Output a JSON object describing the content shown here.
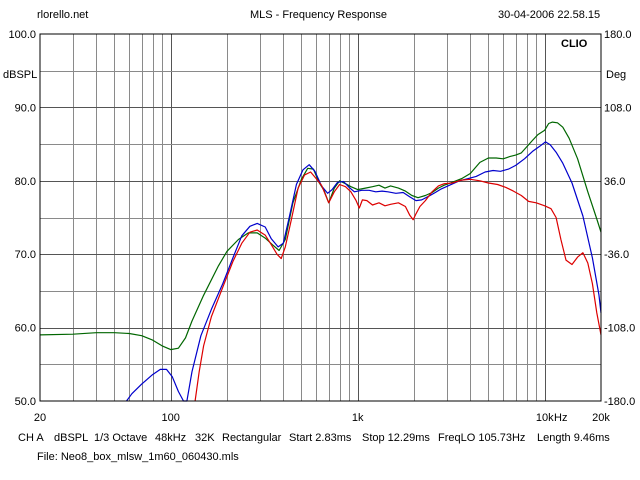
{
  "header": {
    "left": "rlorello.net",
    "center": "MLS - Frequency Response",
    "right": "30-04-2006 22.58.15"
  },
  "brand": "CLIO",
  "footer": {
    "line1": [
      "CH A",
      "dBSPL",
      "1/3 Octave",
      "48kHz",
      "32K",
      "Rectangular",
      "Start 2.83ms",
      "Stop 12.29ms",
      "FreqLO 105.73Hz",
      "Length 9.46ms"
    ],
    "line2": "File: Neo8_box_mlsw_1m60_060430.mls"
  },
  "chart_data": {
    "type": "line",
    "x_scale": "log",
    "xlim": [
      20,
      20000
    ],
    "ylim": [
      50,
      100
    ],
    "y2lim": [
      -180,
      180
    ],
    "grid": true,
    "legend": "none",
    "ylabel": "dBSPL",
    "y2label": "Deg",
    "xunit": "Hz",
    "x_ticks": [
      {
        "value": 20,
        "label": "20"
      },
      {
        "value": 100,
        "label": "100"
      },
      {
        "value": 1000,
        "label": "1k"
      },
      {
        "value": 10000,
        "label": "10k"
      },
      {
        "value": 20000,
        "label": "20k"
      }
    ],
    "y_ticks": [
      "50.0",
      "60.0",
      "70.0",
      "80.0",
      "90.0",
      "100.0"
    ],
    "y2_ticks": [
      "-180.0",
      "-108.0",
      "-36.0",
      "36.0",
      "108.0",
      "180.0"
    ],
    "series": [
      {
        "color": "#006600",
        "points": [
          [
            20,
            59
          ],
          [
            30,
            59.1
          ],
          [
            40,
            59.3
          ],
          [
            50,
            59.3
          ],
          [
            60,
            59.2
          ],
          [
            70,
            58.9
          ],
          [
            80,
            58.3
          ],
          [
            90,
            57.5
          ],
          [
            100,
            57
          ],
          [
            110,
            57.2
          ],
          [
            120,
            58.6
          ],
          [
            130,
            60.9
          ],
          [
            150,
            64.4
          ],
          [
            180,
            68.4
          ],
          [
            200,
            70.4
          ],
          [
            230,
            72
          ],
          [
            260,
            72.9
          ],
          [
            290,
            72.9
          ],
          [
            320,
            72.2
          ],
          [
            350,
            71.3
          ],
          [
            380,
            70.5
          ],
          [
            410,
            72
          ],
          [
            450,
            77
          ],
          [
            500,
            80.2
          ],
          [
            540,
            81.7
          ],
          [
            580,
            81.6
          ],
          [
            620,
            79.8
          ],
          [
            660,
            78.7
          ],
          [
            700,
            77
          ],
          [
            750,
            79
          ],
          [
            800,
            80
          ],
          [
            860,
            79.6
          ],
          [
            920,
            79.2
          ],
          [
            1000,
            78.8
          ],
          [
            1100,
            79
          ],
          [
            1200,
            79.2
          ],
          [
            1300,
            79.4
          ],
          [
            1400,
            79
          ],
          [
            1500,
            79.3
          ],
          [
            1650,
            79
          ],
          [
            1800,
            78.6
          ],
          [
            1950,
            78
          ],
          [
            2100,
            77.7
          ],
          [
            2300,
            78
          ],
          [
            2500,
            78.4
          ],
          [
            2700,
            79
          ],
          [
            2900,
            79.4
          ],
          [
            3200,
            79.8
          ],
          [
            3600,
            80.3
          ],
          [
            4000,
            81
          ],
          [
            4500,
            82.5
          ],
          [
            5000,
            83.1
          ],
          [
            5500,
            83.1
          ],
          [
            6000,
            83
          ],
          [
            6500,
            83.3
          ],
          [
            7000,
            83.5
          ],
          [
            7500,
            83.8
          ],
          [
            8000,
            84.6
          ],
          [
            8600,
            85.5
          ],
          [
            9200,
            86.3
          ],
          [
            10000,
            86.9
          ],
          [
            10500,
            87.8
          ],
          [
            11000,
            88
          ],
          [
            11700,
            87.9
          ],
          [
            12500,
            87.3
          ],
          [
            13500,
            85.8
          ],
          [
            15000,
            83
          ],
          [
            17000,
            78.5
          ],
          [
            19000,
            74.8
          ],
          [
            20000,
            73
          ]
        ]
      },
      {
        "color": "#0000cc",
        "points": [
          [
            58,
            50
          ],
          [
            62,
            51
          ],
          [
            70,
            52.3
          ],
          [
            80,
            53.6
          ],
          [
            88,
            54.3
          ],
          [
            95,
            54.3
          ],
          [
            102,
            53.3
          ],
          [
            110,
            51.3
          ],
          [
            117,
            50
          ],
          [
            122,
            50
          ],
          [
            130,
            54
          ],
          [
            145,
            58.9
          ],
          [
            165,
            62.5
          ],
          [
            190,
            66
          ],
          [
            215,
            69.5
          ],
          [
            240,
            72.5
          ],
          [
            265,
            73.8
          ],
          [
            290,
            74.2
          ],
          [
            320,
            73.7
          ],
          [
            345,
            72.1
          ],
          [
            375,
            71
          ],
          [
            400,
            71.5
          ],
          [
            430,
            75
          ],
          [
            470,
            79.5
          ],
          [
            510,
            81.5
          ],
          [
            550,
            82.2
          ],
          [
            590,
            81.3
          ],
          [
            640,
            79.3
          ],
          [
            690,
            78.3
          ],
          [
            730,
            78.8
          ],
          [
            780,
            79.8
          ],
          [
            840,
            79.9
          ],
          [
            900,
            79.1
          ],
          [
            960,
            78.5
          ],
          [
            1050,
            78.7
          ],
          [
            1150,
            78.7
          ],
          [
            1250,
            78.5
          ],
          [
            1350,
            78.6
          ],
          [
            1450,
            78.5
          ],
          [
            1600,
            78.3
          ],
          [
            1750,
            78.4
          ],
          [
            1900,
            77.8
          ],
          [
            2050,
            77.3
          ],
          [
            2200,
            77.4
          ],
          [
            2400,
            77.9
          ],
          [
            2600,
            78.4
          ],
          [
            2800,
            78.9
          ],
          [
            3100,
            79.4
          ],
          [
            3500,
            80
          ],
          [
            3900,
            80.3
          ],
          [
            4300,
            80.6
          ],
          [
            4800,
            81.2
          ],
          [
            5300,
            81.4
          ],
          [
            5800,
            81.3
          ],
          [
            6400,
            81.6
          ],
          [
            7000,
            82.1
          ],
          [
            7800,
            83
          ],
          [
            8600,
            84
          ],
          [
            9400,
            84.7
          ],
          [
            10100,
            85.3
          ],
          [
            10700,
            84.9
          ],
          [
            11500,
            83.9
          ],
          [
            12500,
            82.4
          ],
          [
            14000,
            79.7
          ],
          [
            16000,
            75.2
          ],
          [
            18000,
            69.5
          ],
          [
            19500,
            64.5
          ],
          [
            20000,
            62
          ]
        ]
      },
      {
        "color": "#dd0000",
        "points": [
          [
            135,
            50
          ],
          [
            142,
            54
          ],
          [
            150,
            57.5
          ],
          [
            165,
            61.5
          ],
          [
            190,
            65.5
          ],
          [
            215,
            69
          ],
          [
            240,
            71.5
          ],
          [
            265,
            73
          ],
          [
            290,
            73.3
          ],
          [
            320,
            72.6
          ],
          [
            345,
            71.3
          ],
          [
            370,
            70
          ],
          [
            390,
            69.4
          ],
          [
            410,
            71
          ],
          [
            440,
            74.5
          ],
          [
            480,
            79
          ],
          [
            520,
            80.8
          ],
          [
            560,
            81.2
          ],
          [
            600,
            80.3
          ],
          [
            640,
            79.4
          ],
          [
            700,
            77
          ],
          [
            750,
            78.5
          ],
          [
            800,
            79.5
          ],
          [
            860,
            79.2
          ],
          [
            920,
            78.5
          ],
          [
            980,
            77.3
          ],
          [
            1020,
            76.3
          ],
          [
            1060,
            77.4
          ],
          [
            1120,
            77.3
          ],
          [
            1200,
            76.7
          ],
          [
            1300,
            77
          ],
          [
            1400,
            76.6
          ],
          [
            1500,
            76.8
          ],
          [
            1650,
            77
          ],
          [
            1800,
            76.5
          ],
          [
            1900,
            75.3
          ],
          [
            1980,
            74.7
          ],
          [
            2050,
            75.5
          ],
          [
            2150,
            76.5
          ],
          [
            2300,
            77.3
          ],
          [
            2500,
            78.5
          ],
          [
            2700,
            79.3
          ],
          [
            2900,
            79.6
          ],
          [
            3200,
            79.7
          ],
          [
            3600,
            80.1
          ],
          [
            4000,
            80.2
          ],
          [
            4500,
            80
          ],
          [
            5000,
            79.7
          ],
          [
            5600,
            79.5
          ],
          [
            6200,
            79.1
          ],
          [
            6800,
            78.6
          ],
          [
            7500,
            78
          ],
          [
            8200,
            77.2
          ],
          [
            9000,
            77
          ],
          [
            10000,
            76.6
          ],
          [
            10800,
            76.2
          ],
          [
            11500,
            75
          ],
          [
            12200,
            72
          ],
          [
            13000,
            69.2
          ],
          [
            14000,
            68.6
          ],
          [
            15000,
            69.6
          ],
          [
            16000,
            70.2
          ],
          [
            17000,
            68.8
          ],
          [
            18000,
            66
          ],
          [
            19000,
            62
          ],
          [
            20000,
            59
          ]
        ]
      }
    ]
  }
}
